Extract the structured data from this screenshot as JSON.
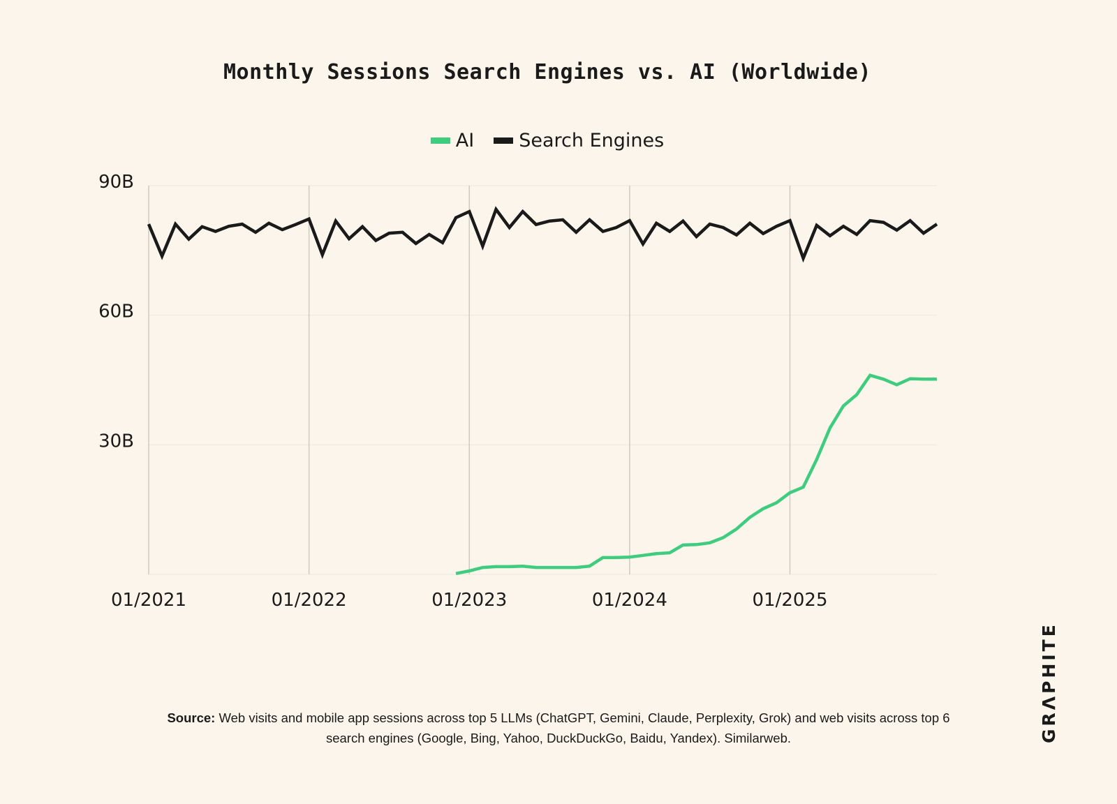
{
  "chart_data": {
    "type": "line",
    "title": "Monthly Sessions Search Engines vs. AI (Worldwide)",
    "xlabel": "",
    "ylabel": "",
    "x_start": "01/2021",
    "x_end": "12/2025",
    "x_tick_labels": [
      "01/2021",
      "01/2022",
      "01/2023",
      "01/2024",
      "01/2025"
    ],
    "y_tick_labels": [
      "90B",
      "60B",
      "30B"
    ],
    "y_ticks": [
      90,
      60,
      30
    ],
    "ylim": [
      0,
      90
    ],
    "y_unit": "billions of sessions",
    "grid": true,
    "legend_position": "top-center",
    "series": [
      {
        "name": "AI",
        "color": "#3ecc7f",
        "start": "12/2022",
        "values": [
          0.2,
          0.8,
          1.6,
          1.8,
          1.8,
          1.9,
          1.6,
          1.6,
          1.6,
          1.6,
          1.9,
          3.9,
          3.9,
          4.0,
          4.4,
          4.8,
          5.0,
          6.8,
          6.9,
          7.3,
          8.5,
          10.5,
          13.2,
          15.2,
          16.6,
          18.9,
          20.2,
          26.6,
          33.9,
          39.0,
          41.6,
          46.1,
          45.2,
          43.9,
          45.3,
          45.2,
          45.2
        ]
      },
      {
        "name": "Search Engines",
        "color": "#1a1a1a",
        "start": "01/2021",
        "values": [
          81.1,
          73.7,
          81.1,
          77.6,
          80.5,
          79.4,
          80.6,
          81.1,
          79.2,
          81.3,
          79.8,
          81.0,
          82.3,
          74.0,
          81.8,
          77.7,
          80.5,
          77.3,
          79.0,
          79.2,
          76.6,
          78.7,
          76.8,
          82.6,
          84.0,
          76.0,
          84.5,
          80.3,
          84.0,
          81.0,
          81.8,
          82.1,
          79.2,
          82.1,
          79.4,
          80.3,
          81.9,
          76.5,
          81.3,
          79.4,
          81.8,
          78.2,
          81.1,
          80.3,
          78.6,
          81.3,
          78.9,
          80.6,
          81.9,
          73.2,
          80.8,
          78.4,
          80.6,
          78.7,
          81.9,
          81.5,
          79.7,
          81.9,
          79.0,
          81.1
        ]
      }
    ]
  },
  "source": {
    "label": "Source:",
    "text": "Web visits and mobile app sessions across top 5 LLMs (ChatGPT, Gemini, Claude, Perplexity, Grok) and web visits across top 6 search engines (Google, Bing, Yahoo, DuckDuckGo, Baidu, Yandex). Similarweb."
  },
  "logo": "GRΛPHITE"
}
